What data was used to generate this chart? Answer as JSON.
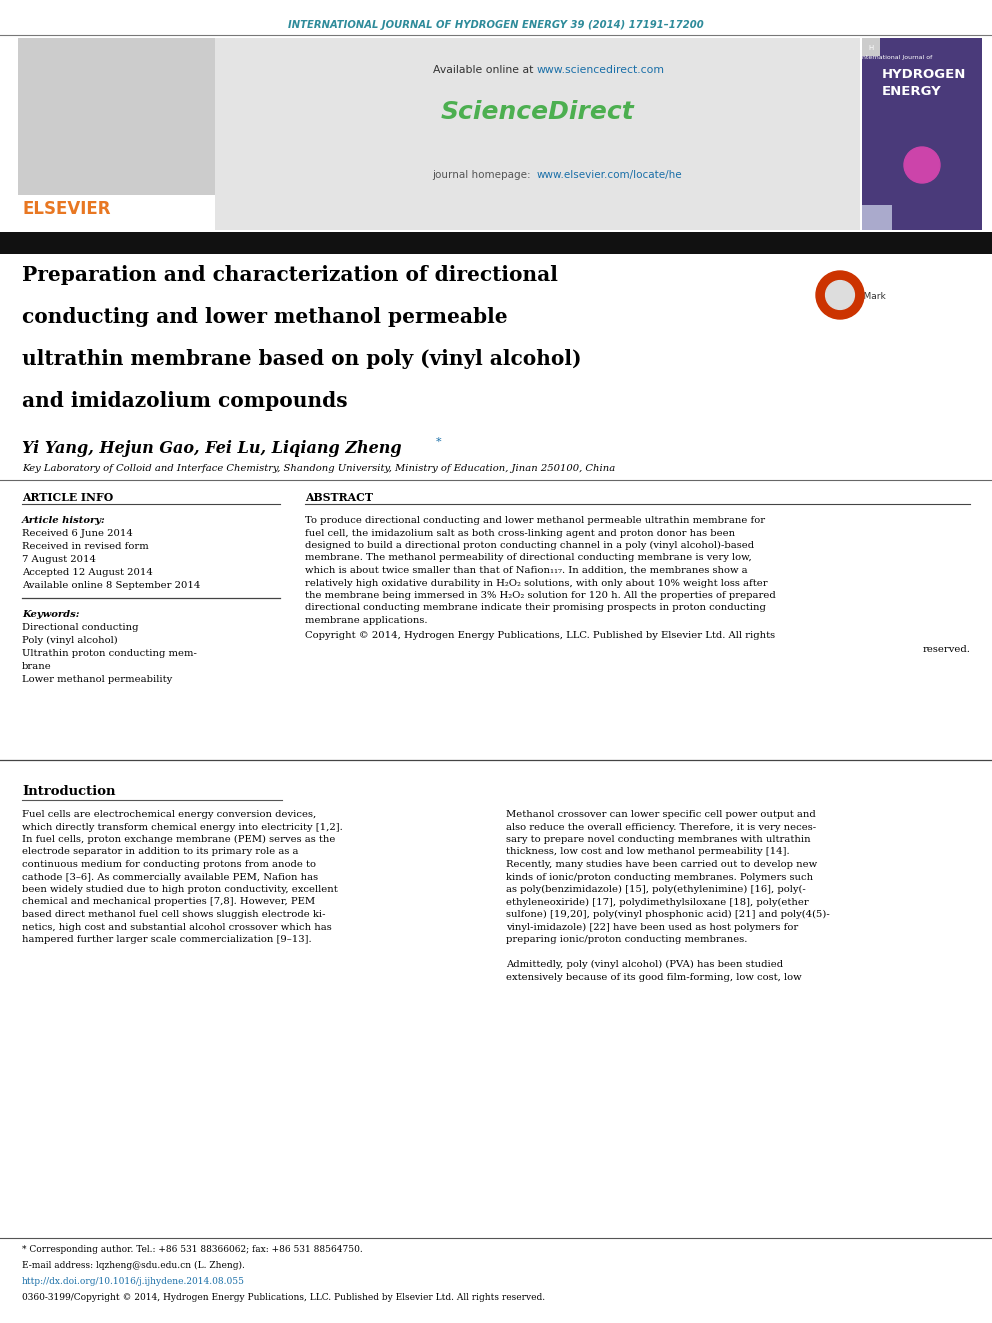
{
  "page_width": 9.92,
  "page_height": 13.23,
  "bg_color": "#ffffff",
  "header_journal_text": "INTERNATIONAL JOURNAL OF HYDROGEN ENERGY 39 (2014) 17191–17200",
  "header_journal_color": "#2e8b9a",
  "elsevier_color": "#e87722",
  "sciencedirect_color": "#4caf50",
  "link_color": "#1a6fa8",
  "dark_bar_color": "#1a1a1a",
  "header_bg": "#e0e0e0",
  "title_lines": [
    "Preparation and characterization of directional",
    "conducting and lower methanol permeable",
    "ultrathin membrane based on poly (vinyl alcohol)",
    "and imidazolium compounds"
  ],
  "authors": "Yi Yang, Hejun Gao, Fei Lu, Liqiang Zheng",
  "affiliation": "Key Laboratory of Colloid and Interface Chemistry, Shandong University, Ministry of Education, Jinan 250100, China",
  "article_info_header": "ARTICLE INFO",
  "abstract_header": "ABSTRACT",
  "ai_items": [
    [
      "Article history:",
      true
    ],
    [
      "Received 6 June 2014",
      false
    ],
    [
      "Received in revised form",
      false
    ],
    [
      "7 August 2014",
      false
    ],
    [
      "Accepted 12 August 2014",
      false
    ],
    [
      "Available online 8 September 2014",
      false
    ]
  ],
  "kw_items": [
    [
      "Keywords:",
      true
    ],
    [
      "Directional conducting",
      false
    ],
    [
      "Poly (vinyl alcohol)",
      false
    ],
    [
      "Ultrathin proton conducting mem-",
      false
    ],
    [
      "brane",
      false
    ],
    [
      "Lower methanol permeability",
      false
    ]
  ],
  "abstract_lines": [
    "To produce directional conducting and lower methanol permeable ultrathin membrane for",
    "fuel cell, the imidazolium salt as both cross-linking agent and proton donor has been",
    "designed to build a directional proton conducting channel in a poly (vinyl alcohol)-based",
    "membrane. The methanol permeability of directional conducting membrane is very low,",
    "which is about twice smaller than that of Nafion₁₁₇. In addition, the membranes show a",
    "relatively high oxidative durability in H₂O₂ solutions, with only about 10% weight loss after",
    "the membrane being immersed in 3% H₂O₂ solution for 120 h. All the properties of prepared",
    "directional conducting membrane indicate their promising prospects in proton conducting",
    "membrane applications."
  ],
  "copyright1": "Copyright © 2014, Hydrogen Energy Publications, LLC. Published by Elsevier Ltd. All rights",
  "copyright2": "reserved.",
  "intro_header": "Introduction",
  "intro_col1": [
    "Fuel cells are electrochemical energy conversion devices,",
    "which directly transform chemical energy into electricity [1,2].",
    "In fuel cells, proton exchange membrane (PEM) serves as the",
    "electrode separator in addition to its primary role as a",
    "continuous medium for conducting protons from anode to",
    "cathode [3–6]. As commercially available PEM, Nafion has",
    "been widely studied due to high proton conductivity, excellent",
    "chemical and mechanical properties [7,8]. However, PEM",
    "based direct methanol fuel cell shows sluggish electrode ki-",
    "netics, high cost and substantial alcohol crossover which has",
    "hampered further larger scale commercialization [9–13]."
  ],
  "intro_col2": [
    "Methanol crossover can lower specific cell power output and",
    "also reduce the overall efficiency. Therefore, it is very neces-",
    "sary to prepare novel conducting membranes with ultrathin",
    "thickness, low cost and low methanol permeability [14].",
    "Recently, many studies have been carried out to develop new",
    "kinds of ionic/proton conducting membranes. Polymers such",
    "as poly(benzimidazole) [15], poly(ethylenimine) [16], poly(-",
    "ethyleneoxiride) [17], polydimethylsiloxane [18], poly(ether",
    "sulfone) [19,20], poly(vinyl phosphonic acid) [21] and poly(4(5)-",
    "vinyl-imidazole) [22] have been used as host polymers for",
    "preparing ionic/proton conducting membranes.",
    "",
    "Admittedly, poly (vinyl alcohol) (PVA) has been studied",
    "extensively because of its good film-forming, low cost, low"
  ],
  "footnote_star": "* Corresponding author. Tel.: +86 531 88366062; fax: +86 531 88564750.",
  "footnote_email": "E-mail address: lqzheng@sdu.edu.cn (L. Zheng).",
  "footnote_doi": "http://dx.doi.org/10.1016/j.ijhydene.2014.08.055",
  "footnote_issn": "0360-3199/Copyright © 2014, Hydrogen Energy Publications, LLC. Published by Elsevier Ltd. All rights reserved."
}
